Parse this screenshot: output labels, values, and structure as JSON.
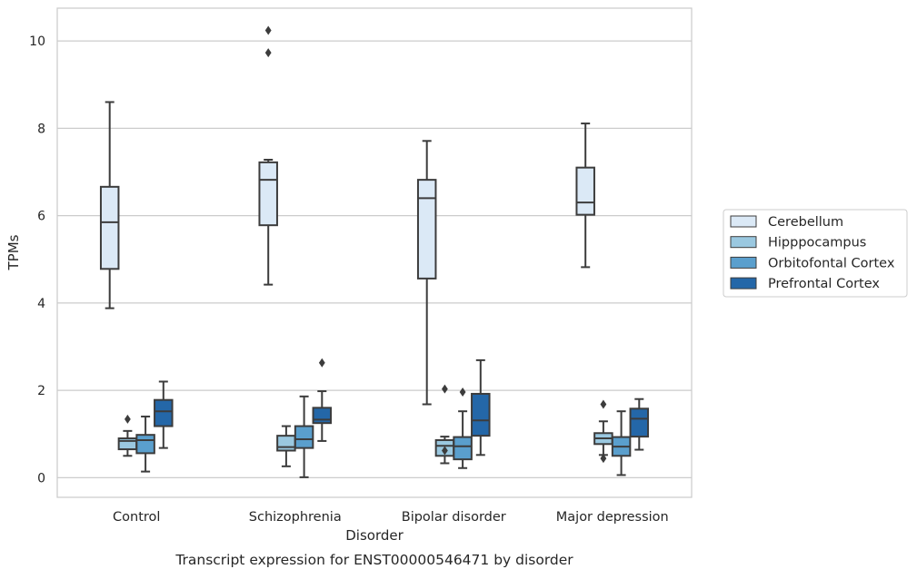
{
  "chart_data": {
    "type": "box",
    "caption": "Transcript expression for ENST00000546471 by disorder",
    "xlabel": "Disorder",
    "ylabel": "TPMs",
    "ylim": [
      -0.45,
      10.75
    ],
    "yticks": [
      0,
      2,
      4,
      6,
      8,
      10
    ],
    "grid": "horizontal",
    "legend_position": "right",
    "categories": [
      "Control",
      "Schizophrenia",
      "Bipolar disorder",
      "Major depression"
    ],
    "series": [
      {
        "name": "Cerebellum",
        "color": "#dbe9f6",
        "boxes": [
          {
            "whisker_low": 3.88,
            "q1": 4.78,
            "median": 5.85,
            "q3": 6.66,
            "whisker_high": 8.6,
            "outliers": []
          },
          {
            "whisker_low": 4.42,
            "q1": 5.78,
            "median": 6.82,
            "q3": 7.22,
            "whisker_high": 7.28,
            "outliers": [
              9.73,
              10.24
            ]
          },
          {
            "whisker_low": 1.68,
            "q1": 4.56,
            "median": 6.4,
            "q3": 6.82,
            "whisker_high": 7.71,
            "outliers": []
          },
          {
            "whisker_low": 4.82,
            "q1": 6.02,
            "median": 6.3,
            "q3": 7.1,
            "whisker_high": 8.11,
            "outliers": []
          }
        ]
      },
      {
        "name": "Hipppocampus",
        "color": "#9ac8e0",
        "boxes": [
          {
            "whisker_low": 0.5,
            "q1": 0.65,
            "median": 0.84,
            "q3": 0.9,
            "whisker_high": 1.07,
            "outliers": [
              1.34
            ]
          },
          {
            "whisker_low": 0.26,
            "q1": 0.62,
            "median": 0.7,
            "q3": 0.96,
            "whisker_high": 1.18,
            "outliers": []
          },
          {
            "whisker_low": 0.33,
            "q1": 0.5,
            "median": 0.73,
            "q3": 0.86,
            "whisker_high": 0.94,
            "outliers": [
              0.62,
              2.03
            ]
          },
          {
            "whisker_low": 0.52,
            "q1": 0.77,
            "median": 0.9,
            "q3": 1.02,
            "whisker_high": 1.29,
            "outliers": [
              0.44,
              1.68
            ]
          }
        ]
      },
      {
        "name": "Orbitofontal Cortex",
        "color": "#5a9fcd",
        "boxes": [
          {
            "whisker_low": 0.14,
            "q1": 0.56,
            "median": 0.86,
            "q3": 0.98,
            "whisker_high": 1.4,
            "outliers": []
          },
          {
            "whisker_low": 0.01,
            "q1": 0.68,
            "median": 0.88,
            "q3": 1.18,
            "whisker_high": 1.86,
            "outliers": []
          },
          {
            "whisker_low": 0.22,
            "q1": 0.42,
            "median": 0.72,
            "q3": 0.93,
            "whisker_high": 1.52,
            "outliers": [
              1.96
            ]
          },
          {
            "whisker_low": 0.06,
            "q1": 0.5,
            "median": 0.71,
            "q3": 0.93,
            "whisker_high": 1.52,
            "outliers": []
          }
        ]
      },
      {
        "name": "Prefrontal Cortex",
        "color": "#2467a8",
        "boxes": [
          {
            "whisker_low": 0.68,
            "q1": 1.18,
            "median": 1.52,
            "q3": 1.78,
            "whisker_high": 2.2,
            "outliers": []
          },
          {
            "whisker_low": 0.84,
            "q1": 1.25,
            "median": 1.33,
            "q3": 1.6,
            "whisker_high": 1.98,
            "outliers": [
              2.63
            ]
          },
          {
            "whisker_low": 0.52,
            "q1": 0.96,
            "median": 1.31,
            "q3": 1.92,
            "whisker_high": 2.69,
            "outliers": []
          },
          {
            "whisker_low": 0.64,
            "q1": 0.94,
            "median": 1.35,
            "q3": 1.58,
            "whisker_high": 1.8,
            "outliers": []
          }
        ]
      }
    ]
  }
}
